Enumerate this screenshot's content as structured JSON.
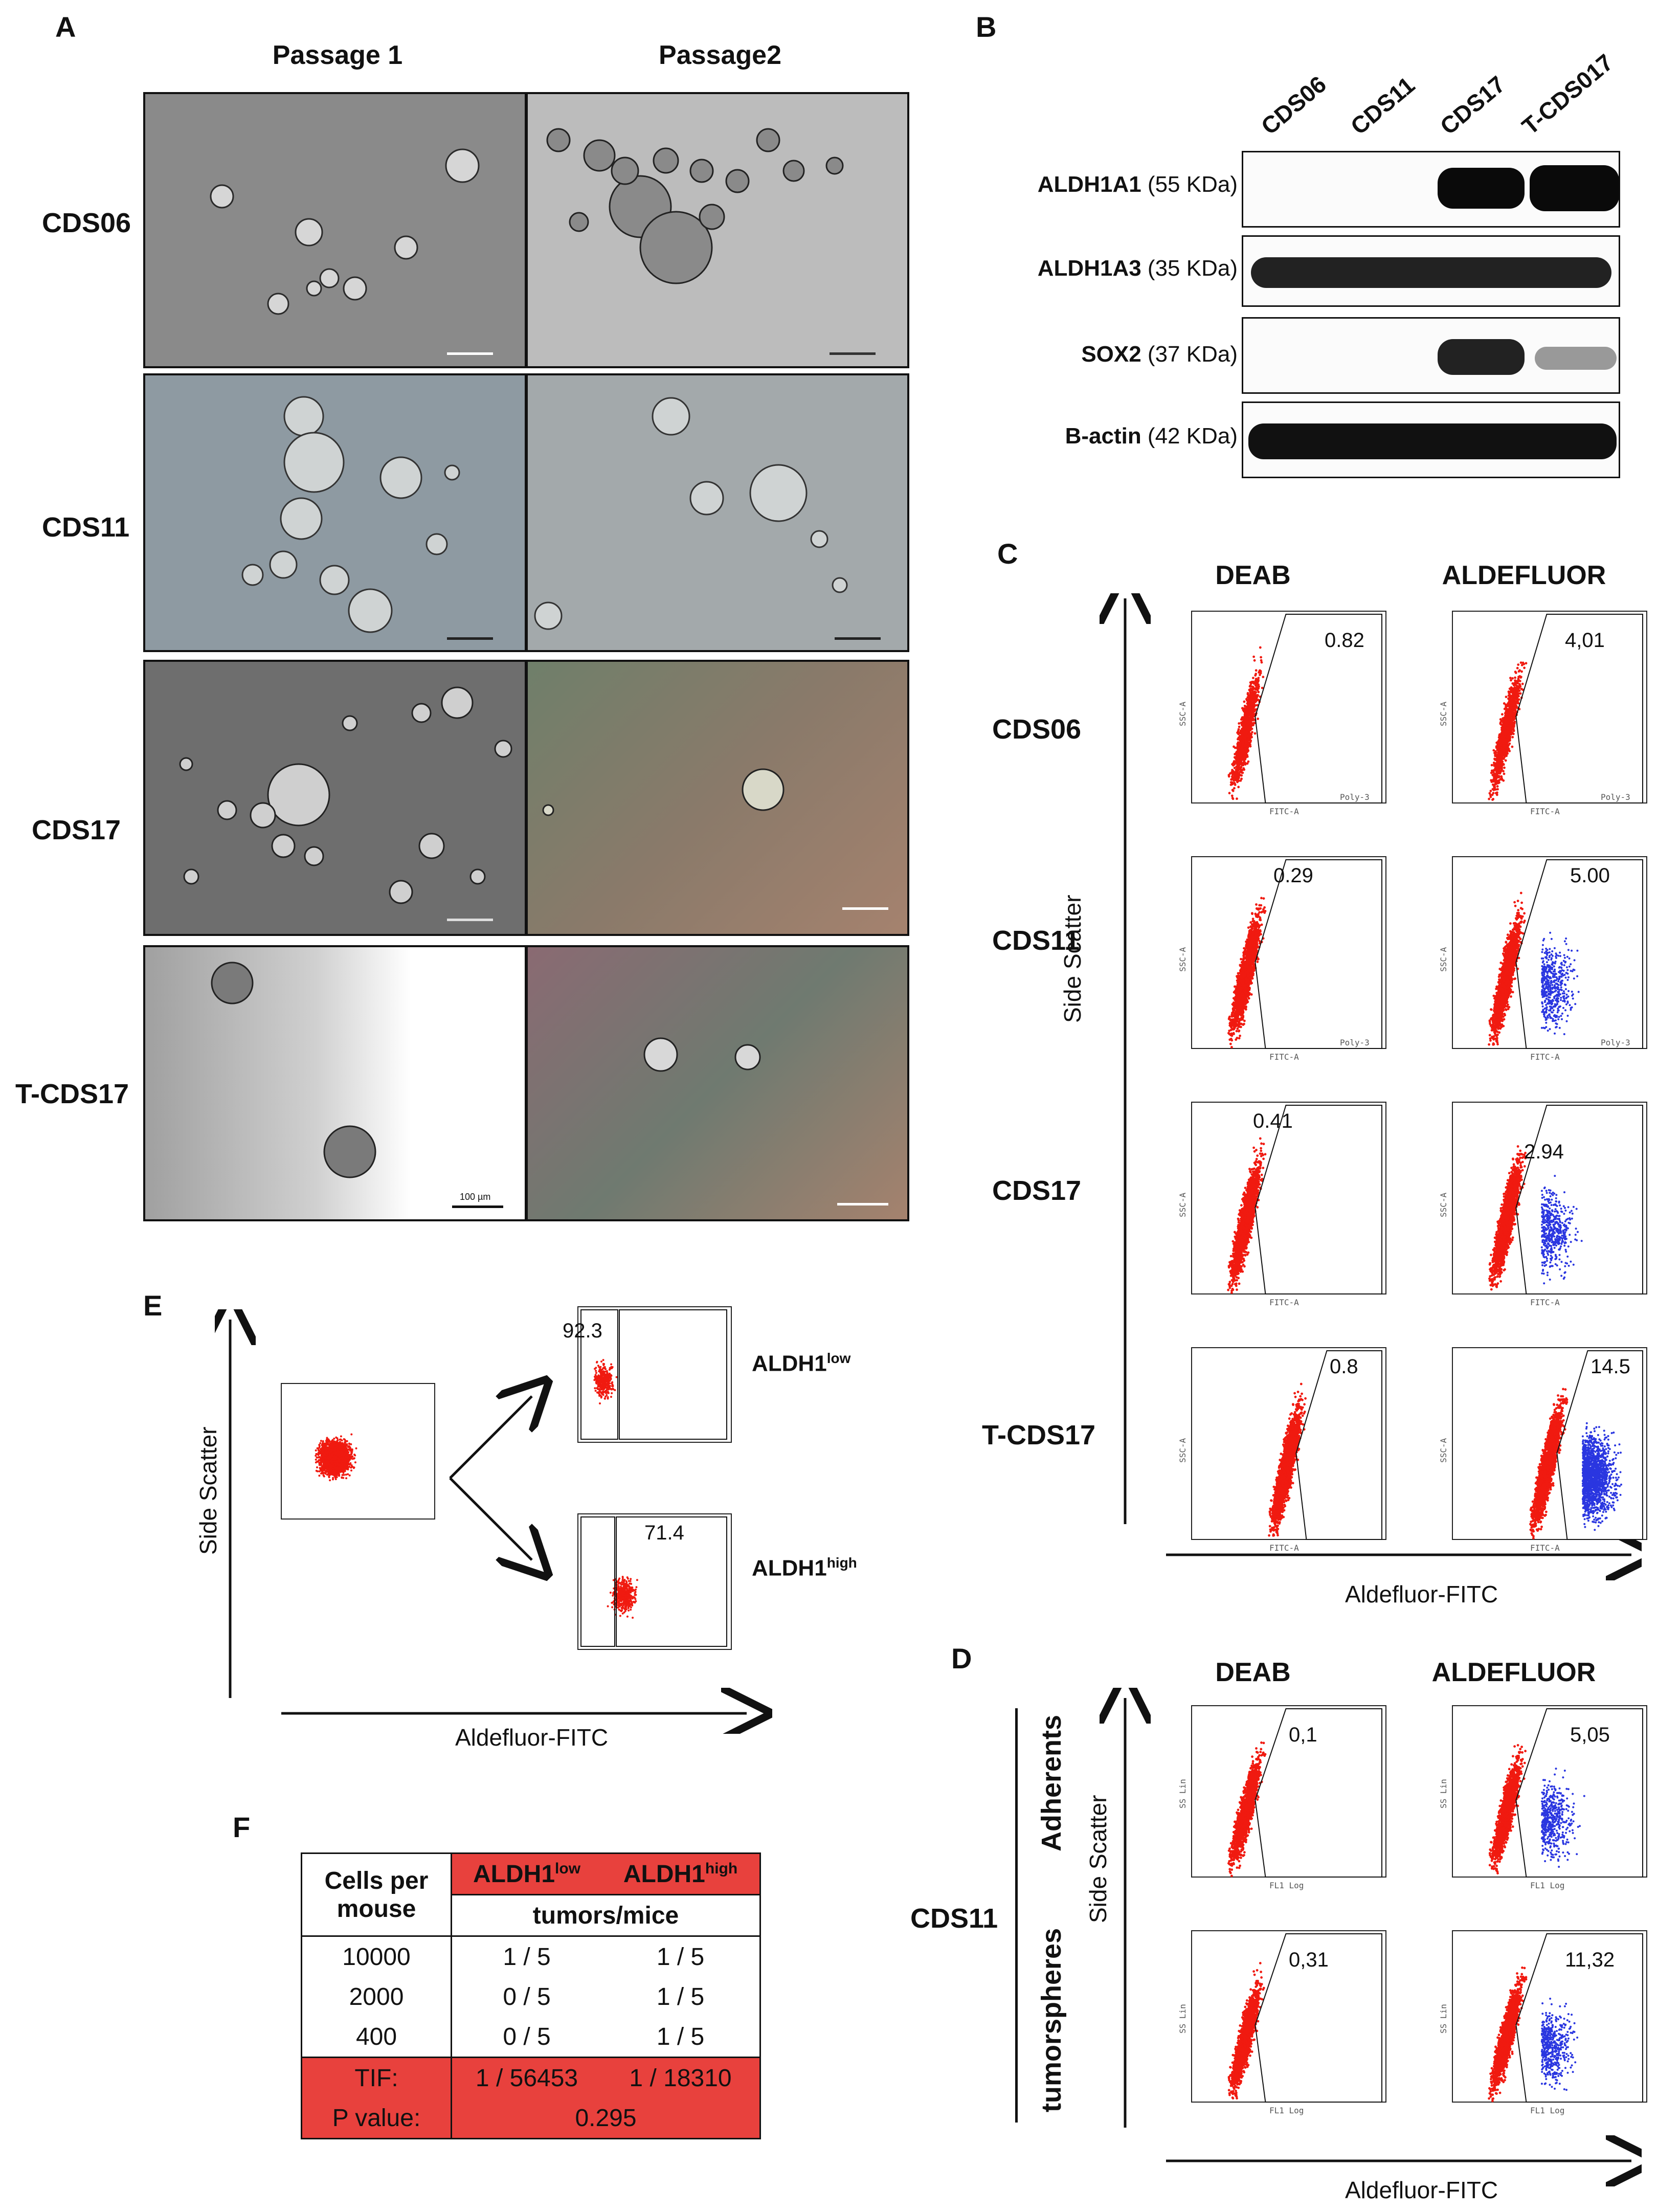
{
  "panelA": {
    "letter": "A",
    "col_headers": [
      "Passage 1",
      "Passage2"
    ],
    "rows": [
      "CDS06",
      "CDS11",
      "CDS17",
      "T-CDS17"
    ],
    "scale_label": "100 µm"
  },
  "panelB": {
    "letter": "B",
    "lanes": [
      "CDS06",
      "CDS11",
      "CDS17",
      "T-CDS017"
    ],
    "blots": [
      {
        "name": "ALDH1A1",
        "size": " (55 KDa)"
      },
      {
        "name": "ALDH1A3",
        "size": " (35 KDa)"
      },
      {
        "name": "SOX2",
        "size": " (37 KDa)"
      },
      {
        "name": "B-actin",
        "size": " (42 KDa)"
      }
    ]
  },
  "panelC": {
    "letter": "C",
    "col_headers": [
      "DEAB",
      "ALDEFLUOR"
    ],
    "rows": [
      "CDS06",
      "CDS11",
      "CDS17",
      "T-CDS17"
    ],
    "values": [
      [
        "0.82",
        "4,01"
      ],
      [
        "0.29",
        "5.00"
      ],
      [
        "0.41",
        "2.94"
      ],
      [
        "0.8",
        "14.5"
      ]
    ],
    "y_axis": "Side Scatter",
    "x_axis": "Aldefluor-FITC",
    "plot_y": "SSC-A",
    "plot_x": "FITC-A",
    "gate": "Poly-3"
  },
  "panelD": {
    "letter": "D",
    "col_headers": [
      "DEAB",
      "ALDEFLUOR"
    ],
    "rows": [
      "Adherents",
      "tumorspheres"
    ],
    "group": "CDS11",
    "values": [
      [
        "0,1",
        "5,05"
      ],
      [
        "0,31",
        "11,32"
      ]
    ],
    "y_axis": "Side Scatter",
    "x_axis": "Aldefluor-FITC",
    "plot_y": "SS Lin",
    "plot_x": "FL1 Log"
  },
  "panelE": {
    "letter": "E",
    "y_axis": "Side Scatter",
    "x_axis": "Aldefluor-FITC",
    "low_value": "92.3",
    "high_value": "71.4",
    "low_label": "ALDH1",
    "low_sup": "low",
    "high_label": "ALDH1",
    "high_sup": "high"
  },
  "panelF": {
    "letter": "F",
    "col0_header": "Cells per mouse",
    "col1_header": "ALDH1",
    "col1_sup": "low",
    "col2_header": "ALDH1",
    "col2_sup": "high",
    "sub_header": "tumors/mice",
    "rows": [
      {
        "cells": "10000",
        "low": "1 / 5",
        "high": "1 / 5"
      },
      {
        "cells": "2000",
        "low": "0 / 5",
        "high": "1 / 5"
      },
      {
        "cells": "400",
        "low": "0 / 5",
        "high": "1 / 5"
      }
    ],
    "tif_label": "TIF:",
    "tif_low": "1 / 56453",
    "tif_high": "1 /  18310",
    "p_label": "P value:",
    "p_value": "0.295",
    "highlight_color": "#e8413d"
  }
}
